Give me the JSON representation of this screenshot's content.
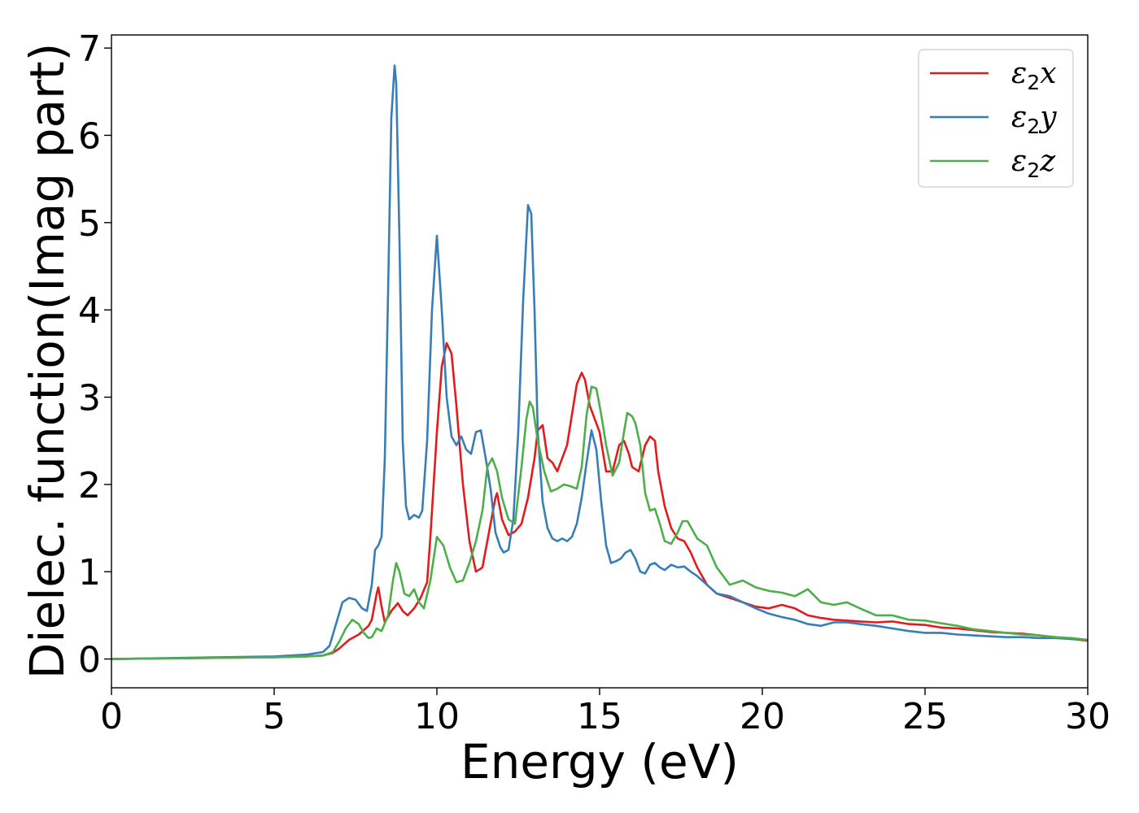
{
  "chart_data": {
    "type": "line",
    "title": "",
    "xlabel": "Energy (eV)",
    "ylabel": "Dielec. function(Imag part)",
    "xlim": [
      0,
      30
    ],
    "ylim": [
      -0.33,
      7.15
    ],
    "xticks": [
      0,
      5,
      10,
      15,
      20,
      25,
      30
    ],
    "yticks": [
      0,
      1,
      2,
      3,
      4,
      5,
      6,
      7
    ],
    "grid": false,
    "legend_position": "top-right",
    "series": [
      {
        "name": "ε₂x",
        "legend_base": "ε",
        "legend_sub": "2",
        "legend_tail": "x",
        "color": "#e41a1c",
        "x": [
          0,
          5,
          6,
          6.5,
          6.8,
          7.0,
          7.3,
          7.6,
          7.9,
          8.0,
          8.15,
          8.2,
          8.3,
          8.4,
          8.6,
          8.8,
          8.95,
          9.1,
          9.3,
          9.5,
          9.7,
          9.8,
          10.0,
          10.15,
          10.3,
          10.45,
          10.6,
          10.8,
          11.0,
          11.2,
          11.4,
          11.6,
          11.8,
          11.85,
          12.0,
          12.2,
          12.4,
          12.6,
          12.8,
          13.0,
          13.1,
          13.25,
          13.4,
          13.55,
          13.7,
          13.85,
          14.0,
          14.15,
          14.3,
          14.45,
          14.55,
          14.7,
          14.85,
          15.0,
          15.2,
          15.4,
          15.6,
          15.75,
          15.9,
          16.0,
          16.2,
          16.4,
          16.55,
          16.7,
          16.8,
          17.0,
          17.2,
          17.4,
          17.6,
          17.8,
          18.0,
          18.3,
          18.6,
          19.0,
          19.4,
          19.8,
          20.2,
          20.6,
          21.0,
          21.4,
          21.8,
          22.2,
          22.6,
          23.0,
          23.5,
          24.0,
          24.5,
          25.0,
          25.5,
          26.0,
          26.5,
          27.0,
          27.5,
          28.0,
          28.5,
          29.0,
          29.5,
          30
        ],
        "values": [
          0,
          0.02,
          0.03,
          0.04,
          0.07,
          0.12,
          0.22,
          0.28,
          0.38,
          0.45,
          0.75,
          0.82,
          0.6,
          0.42,
          0.55,
          0.64,
          0.55,
          0.5,
          0.58,
          0.7,
          0.88,
          1.4,
          2.6,
          3.35,
          3.62,
          3.5,
          2.9,
          2.0,
          1.35,
          1.0,
          1.05,
          1.45,
          1.85,
          1.9,
          1.6,
          1.42,
          1.46,
          1.55,
          1.85,
          2.3,
          2.62,
          2.68,
          2.3,
          2.25,
          2.15,
          2.3,
          2.45,
          2.8,
          3.15,
          3.28,
          3.2,
          2.9,
          2.75,
          2.6,
          2.15,
          2.15,
          2.45,
          2.5,
          2.35,
          2.2,
          2.15,
          2.45,
          2.55,
          2.5,
          2.15,
          1.75,
          1.5,
          1.38,
          1.35,
          1.22,
          1.05,
          0.85,
          0.75,
          0.7,
          0.65,
          0.6,
          0.58,
          0.62,
          0.58,
          0.5,
          0.47,
          0.45,
          0.44,
          0.43,
          0.42,
          0.43,
          0.4,
          0.39,
          0.36,
          0.35,
          0.33,
          0.31,
          0.3,
          0.29,
          0.27,
          0.25,
          0.23,
          0.21
        ]
      },
      {
        "name": "ε₂y",
        "legend_base": "ε",
        "legend_sub": "2",
        "legend_tail": "y",
        "color": "#377eb8",
        "x": [
          0,
          5,
          6,
          6.5,
          6.7,
          6.9,
          7.1,
          7.3,
          7.5,
          7.7,
          7.85,
          8.0,
          8.1,
          8.2,
          8.3,
          8.4,
          8.5,
          8.6,
          8.7,
          8.75,
          8.85,
          8.95,
          9.05,
          9.15,
          9.3,
          9.45,
          9.55,
          9.7,
          9.85,
          10.0,
          10.15,
          10.3,
          10.45,
          10.6,
          10.75,
          10.9,
          11.05,
          11.2,
          11.35,
          11.5,
          11.65,
          11.8,
          11.95,
          12.05,
          12.2,
          12.35,
          12.5,
          12.65,
          12.8,
          12.9,
          13.0,
          13.1,
          13.25,
          13.4,
          13.55,
          13.7,
          13.85,
          14.0,
          14.15,
          14.3,
          14.45,
          14.6,
          14.75,
          14.9,
          15.05,
          15.2,
          15.35,
          15.5,
          15.65,
          15.8,
          15.95,
          16.1,
          16.25,
          16.4,
          16.55,
          16.7,
          16.85,
          17.0,
          17.2,
          17.4,
          17.6,
          17.8,
          18.0,
          18.3,
          18.6,
          19.0,
          19.4,
          19.8,
          20.2,
          20.6,
          21.0,
          21.4,
          21.8,
          22.2,
          22.6,
          23.0,
          23.5,
          24.0,
          24.5,
          25.0,
          25.5,
          26.0,
          26.5,
          27.0,
          27.5,
          28.0,
          28.5,
          29.0,
          29.5,
          30
        ],
        "values": [
          0,
          0.03,
          0.05,
          0.08,
          0.15,
          0.4,
          0.65,
          0.7,
          0.68,
          0.58,
          0.55,
          0.85,
          1.25,
          1.3,
          1.4,
          2.3,
          4.2,
          6.2,
          6.8,
          6.6,
          4.8,
          2.5,
          1.75,
          1.6,
          1.65,
          1.62,
          1.7,
          2.5,
          4.0,
          4.85,
          4.0,
          3.0,
          2.55,
          2.45,
          2.55,
          2.4,
          2.35,
          2.6,
          2.62,
          2.3,
          1.95,
          1.45,
          1.28,
          1.22,
          1.25,
          1.6,
          2.6,
          4.1,
          5.2,
          5.1,
          4.0,
          2.6,
          1.8,
          1.5,
          1.38,
          1.35,
          1.38,
          1.35,
          1.4,
          1.55,
          1.85,
          2.25,
          2.62,
          2.4,
          1.8,
          1.3,
          1.1,
          1.12,
          1.15,
          1.22,
          1.25,
          1.15,
          1.0,
          0.98,
          1.08,
          1.1,
          1.05,
          1.02,
          1.08,
          1.05,
          1.06,
          1.0,
          0.95,
          0.85,
          0.75,
          0.72,
          0.65,
          0.58,
          0.52,
          0.48,
          0.45,
          0.4,
          0.38,
          0.42,
          0.42,
          0.4,
          0.38,
          0.35,
          0.32,
          0.3,
          0.3,
          0.28,
          0.27,
          0.26,
          0.25,
          0.25,
          0.24,
          0.24,
          0.23,
          0.22
        ]
      },
      {
        "name": "ε₂z",
        "legend_base": "ε",
        "legend_sub": "2",
        "legend_tail": "z",
        "color": "#4daf4a",
        "x": [
          0,
          5,
          6,
          6.5,
          6.8,
          7.0,
          7.2,
          7.4,
          7.6,
          7.75,
          7.9,
          8.0,
          8.15,
          8.3,
          8.5,
          8.65,
          8.75,
          8.85,
          9.0,
          9.15,
          9.3,
          9.45,
          9.6,
          9.8,
          10.0,
          10.2,
          10.4,
          10.6,
          10.8,
          11.0,
          11.2,
          11.4,
          11.55,
          11.7,
          11.85,
          12.0,
          12.2,
          12.4,
          12.6,
          12.75,
          12.85,
          12.95,
          13.1,
          13.3,
          13.5,
          13.7,
          13.9,
          14.1,
          14.3,
          14.45,
          14.6,
          14.75,
          14.9,
          15.05,
          15.2,
          15.4,
          15.6,
          15.75,
          15.85,
          16.0,
          16.1,
          16.25,
          16.4,
          16.55,
          16.7,
          16.85,
          17.0,
          17.2,
          17.4,
          17.55,
          17.7,
          17.85,
          18.0,
          18.3,
          18.6,
          19.0,
          19.4,
          19.8,
          20.2,
          20.6,
          21.0,
          21.4,
          21.8,
          22.2,
          22.6,
          23.0,
          23.5,
          24.0,
          24.5,
          25.0,
          25.5,
          26.0,
          26.5,
          27.0,
          27.5,
          28.0,
          28.5,
          29.0,
          29.5,
          30
        ],
        "values": [
          0,
          0.02,
          0.03,
          0.04,
          0.08,
          0.2,
          0.35,
          0.45,
          0.4,
          0.3,
          0.24,
          0.25,
          0.35,
          0.32,
          0.5,
          0.9,
          1.1,
          1.0,
          0.75,
          0.72,
          0.8,
          0.65,
          0.58,
          0.9,
          1.4,
          1.3,
          1.05,
          0.88,
          0.9,
          1.1,
          1.35,
          1.7,
          2.2,
          2.3,
          2.15,
          1.85,
          1.6,
          1.55,
          2.2,
          2.75,
          2.95,
          2.88,
          2.5,
          2.15,
          1.92,
          1.95,
          2.0,
          1.98,
          1.95,
          2.2,
          2.8,
          3.12,
          3.1,
          2.8,
          2.45,
          2.1,
          2.25,
          2.6,
          2.82,
          2.78,
          2.7,
          2.45,
          1.9,
          1.7,
          1.72,
          1.55,
          1.35,
          1.32,
          1.45,
          1.58,
          1.58,
          1.48,
          1.38,
          1.3,
          1.05,
          0.85,
          0.9,
          0.82,
          0.78,
          0.76,
          0.72,
          0.8,
          0.65,
          0.62,
          0.65,
          0.58,
          0.5,
          0.5,
          0.45,
          0.44,
          0.41,
          0.38,
          0.34,
          0.32,
          0.3,
          0.28,
          0.27,
          0.25,
          0.24,
          0.22
        ]
      }
    ]
  }
}
